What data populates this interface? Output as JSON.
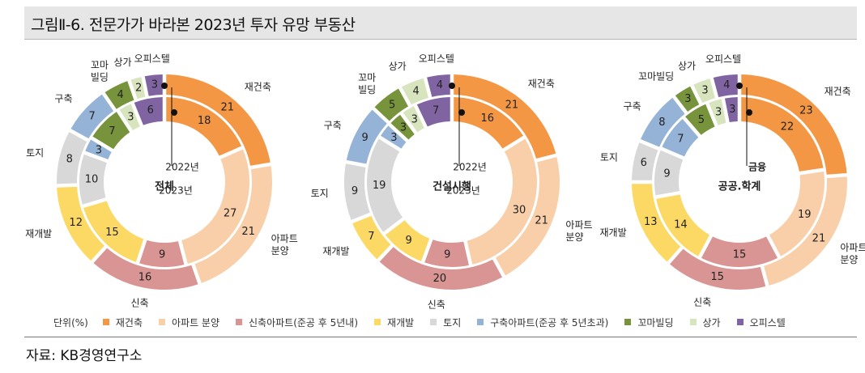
{
  "title": "그림Ⅱ-6.  전문가가 바라본 2023년 투자 유망 부동산",
  "source": "자료: KB경영연구소",
  "legend": {
    "unit": "단위(%)",
    "items": [
      {
        "label": "재건축",
        "color": "#f39745"
      },
      {
        "label": "아파트 분양",
        "color": "#f9cfa9"
      },
      {
        "label": "신축아파트(준공 후 5년내)",
        "color": "#d99594"
      },
      {
        "label": "재개발",
        "color": "#fcd965"
      },
      {
        "label": "토지",
        "color": "#d8d8d8"
      },
      {
        "label": "구축아파트(준공 후 5년초과)",
        "color": "#95b3d7"
      },
      {
        "label": "꼬마빌딩",
        "color": "#77933c"
      },
      {
        "label": "상가",
        "color": "#d7e4bd"
      },
      {
        "label": "오피스텔",
        "color": "#8064a2"
      }
    ]
  },
  "chart_data": [
    {
      "type": "donut",
      "center_label": "전체",
      "inner_ring_label": "2022년",
      "outer_ring_label": "2023년",
      "categories": [
        "재건축",
        "아파트 분양",
        "신축아파트(준공 후 5년내)",
        "재개발",
        "토지",
        "구축아파트(준공 후 5년초과)",
        "꼬마빌딩",
        "상가",
        "오피스텔"
      ],
      "outer_category_labels": [
        "재건축",
        "아파트\n분양",
        "신축",
        "재개발",
        "토지",
        "구축",
        "꼬마\n빌딩",
        "상가",
        "오피스텔"
      ],
      "series": [
        {
          "name": "2022년",
          "values": [
            18,
            27,
            9,
            15,
            10,
            3,
            7,
            3,
            6
          ]
        },
        {
          "name": "2023년",
          "values": [
            21,
            21,
            16,
            12,
            8,
            7,
            4,
            2,
            3
          ]
        }
      ]
    },
    {
      "type": "donut",
      "center_label": "건설시행",
      "inner_ring_label": "2022년",
      "outer_ring_label": "2023년",
      "categories": [
        "재건축",
        "아파트 분양",
        "신축아파트(준공 후 5년내)",
        "재개발",
        "토지",
        "구축아파트(준공 후 5년초과)",
        "꼬마빌딩",
        "상가",
        "오피스텔"
      ],
      "outer_category_labels": [
        "재건축",
        "아파트\n분양",
        "신축",
        "재개발",
        "토지",
        "구축",
        "꼬마\n빌딩",
        "상가",
        "오피스텔"
      ],
      "series": [
        {
          "name": "2022년",
          "values": [
            16,
            30,
            9,
            9,
            19,
            3,
            3,
            3,
            7
          ]
        },
        {
          "name": "2023년",
          "values": [
            21,
            21,
            20,
            7,
            9,
            9,
            5,
            4,
            4
          ]
        }
      ]
    },
    {
      "type": "donut",
      "center_label": "공공.학계",
      "inner_ring_label": "금융",
      "outer_ring_label": "",
      "categories": [
        "재건축",
        "아파트 분양",
        "신축아파트(준공 후 5년내)",
        "재개발",
        "토지",
        "구축아파트(준공 후 5년초과)",
        "꼬마빌딩",
        "상가",
        "오피스텔"
      ],
      "outer_category_labels": [
        "재건축",
        "아파트\n분양",
        "신축",
        "재개발",
        "토지",
        "구축",
        "꼬마빌딩",
        "상가",
        "오피스텔"
      ],
      "series": [
        {
          "name": "금융",
          "values": [
            22,
            19,
            15,
            14,
            9,
            7,
            5,
            3,
            3
          ]
        },
        {
          "name": "공공.학계",
          "values": [
            23,
            21,
            15,
            13,
            6,
            8,
            3,
            3,
            4
          ]
        }
      ]
    }
  ]
}
